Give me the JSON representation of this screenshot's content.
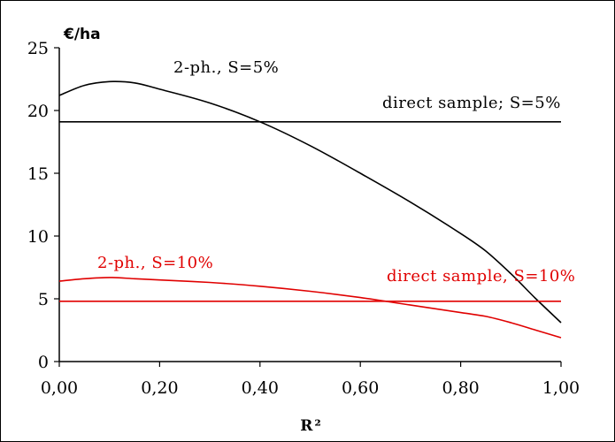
{
  "chart_data": {
    "type": "line",
    "xlabel": "R²",
    "ylabel": "€/ha",
    "xlim": [
      0,
      1
    ],
    "ylim": [
      0,
      25
    ],
    "x_ticks": [
      0,
      0.2,
      0.4,
      0.6,
      0.8,
      1.0
    ],
    "x_tick_labels": [
      "0,00",
      "0,20",
      "0,40",
      "0,60",
      "0,80",
      "1,00"
    ],
    "y_ticks": [
      0,
      5,
      10,
      15,
      20,
      25
    ],
    "y_tick_labels": [
      "0",
      "5",
      "10",
      "15",
      "20",
      "25"
    ],
    "grid": false,
    "colors": {
      "black": "#000000",
      "red": "#e00000"
    },
    "series": [
      {
        "name": "2-ph., S=5%",
        "color": "#000000",
        "x": [
          0.0,
          0.05,
          0.1,
          0.15,
          0.2,
          0.3,
          0.4,
          0.5,
          0.6,
          0.7,
          0.8,
          0.85,
          0.9,
          0.95,
          1.0
        ],
        "y": [
          21.2,
          22.0,
          22.3,
          22.2,
          21.7,
          20.6,
          19.1,
          17.2,
          15.0,
          12.7,
          10.2,
          8.8,
          7.0,
          5.0,
          3.1
        ]
      },
      {
        "name": "direct sample; S=5%",
        "color": "#000000",
        "x": [
          0.0,
          1.0
        ],
        "y": [
          19.1,
          19.1
        ]
      },
      {
        "name": "2-ph., S=10%",
        "color": "#e00000",
        "x": [
          0.0,
          0.05,
          0.1,
          0.15,
          0.2,
          0.3,
          0.4,
          0.5,
          0.6,
          0.7,
          0.8,
          0.85,
          0.9,
          0.95,
          1.0
        ],
        "y": [
          6.4,
          6.6,
          6.7,
          6.6,
          6.5,
          6.3,
          6.0,
          5.6,
          5.1,
          4.5,
          3.9,
          3.6,
          3.1,
          2.5,
          1.9
        ]
      },
      {
        "name": "direct sample, S=10%",
        "color": "#e00000",
        "x": [
          0.0,
          1.0
        ],
        "y": [
          4.8,
          4.8
        ]
      }
    ],
    "annotations": [
      {
        "text": "2-ph., S=5%",
        "color": "#000000"
      },
      {
        "text": "direct sample; S=5%",
        "color": "#000000"
      },
      {
        "text": "2-ph., S=10%",
        "color": "#e00000"
      },
      {
        "text": "direct sample, S=10%",
        "color": "#e00000"
      }
    ]
  }
}
